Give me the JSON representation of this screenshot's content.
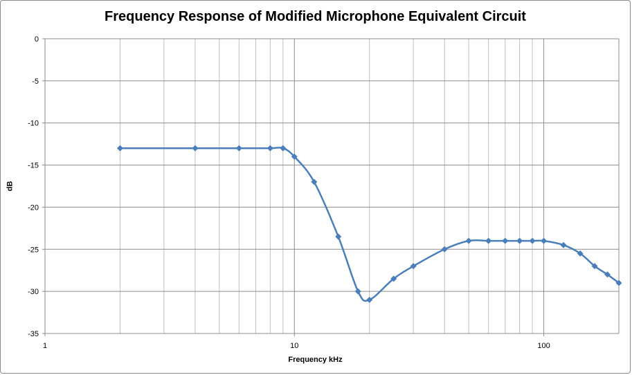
{
  "chart_data": {
    "type": "line",
    "title": "Frequency Response of Modified Microphone Equivalent Circuit",
    "xlabel": "Frequency kHz",
    "ylabel": "dB",
    "xscale": "log",
    "xlim": [
      1,
      200
    ],
    "ylim": [
      -35,
      0
    ],
    "x_ticks": [
      {
        "value": 1,
        "label": "1"
      },
      {
        "value": 10,
        "label": "10"
      },
      {
        "value": 100,
        "label": "100"
      }
    ],
    "y_ticks": [
      {
        "value": 0,
        "label": "0"
      },
      {
        "value": -5,
        "label": "-5"
      },
      {
        "value": -10,
        "label": "-10"
      },
      {
        "value": -15,
        "label": "-15"
      },
      {
        "value": -20,
        "label": "-20"
      },
      {
        "value": -25,
        "label": "-25"
      },
      {
        "value": -30,
        "label": "-30"
      },
      {
        "value": -35,
        "label": "-35"
      }
    ],
    "grid": true,
    "legend": "none",
    "series": [
      {
        "name": "Response",
        "color": "#4a7ebb",
        "marker": "diamond",
        "x": [
          2,
          4,
          6,
          8,
          9,
          10,
          12,
          15,
          18,
          20,
          25,
          30,
          40,
          50,
          60,
          70,
          80,
          90,
          100,
          120,
          140,
          160,
          180,
          200
        ],
        "y": [
          -13,
          -13,
          -13,
          -13,
          -13,
          -14,
          -17,
          -23.5,
          -30,
          -31,
          -28.5,
          -27,
          -25,
          -24,
          -24,
          -24,
          -24,
          -24,
          -24,
          -24.5,
          -25.5,
          -27,
          -28,
          -29
        ]
      }
    ]
  }
}
